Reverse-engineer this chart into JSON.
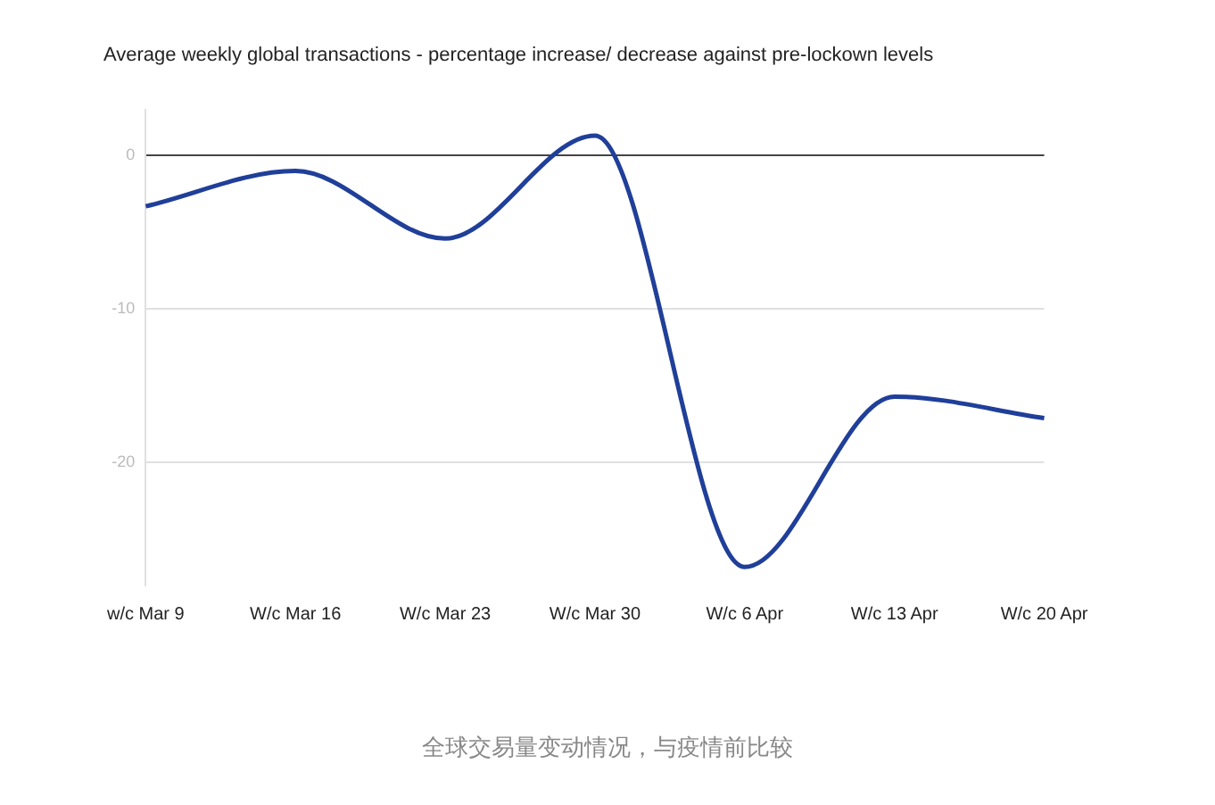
{
  "chart_data": {
    "type": "line",
    "title": "Average weekly global transactions - percentage increase/ decrease against pre-lockown levels",
    "categories": [
      "w/c Mar 9",
      "W/c Mar 16",
      "W/c Mar 23",
      "W/c Mar 30",
      "W/c 6 Apr",
      "W/c 13 Apr",
      "W/c 20 Apr"
    ],
    "series": [
      {
        "color": "#1f3f99",
        "values": [
          -3.3,
          -1.0,
          -5.4,
          1.3,
          -26.8,
          -15.7,
          -17.1
        ]
      }
    ],
    "ylim": [
      -28,
      3
    ],
    "yticks": [
      0,
      -10,
      -20
    ],
    "grid": "y",
    "legend": false,
    "marker": "none",
    "line_style": "solid",
    "annotations": [
      "全球交易量变动情况，与疫情前比较"
    ]
  }
}
